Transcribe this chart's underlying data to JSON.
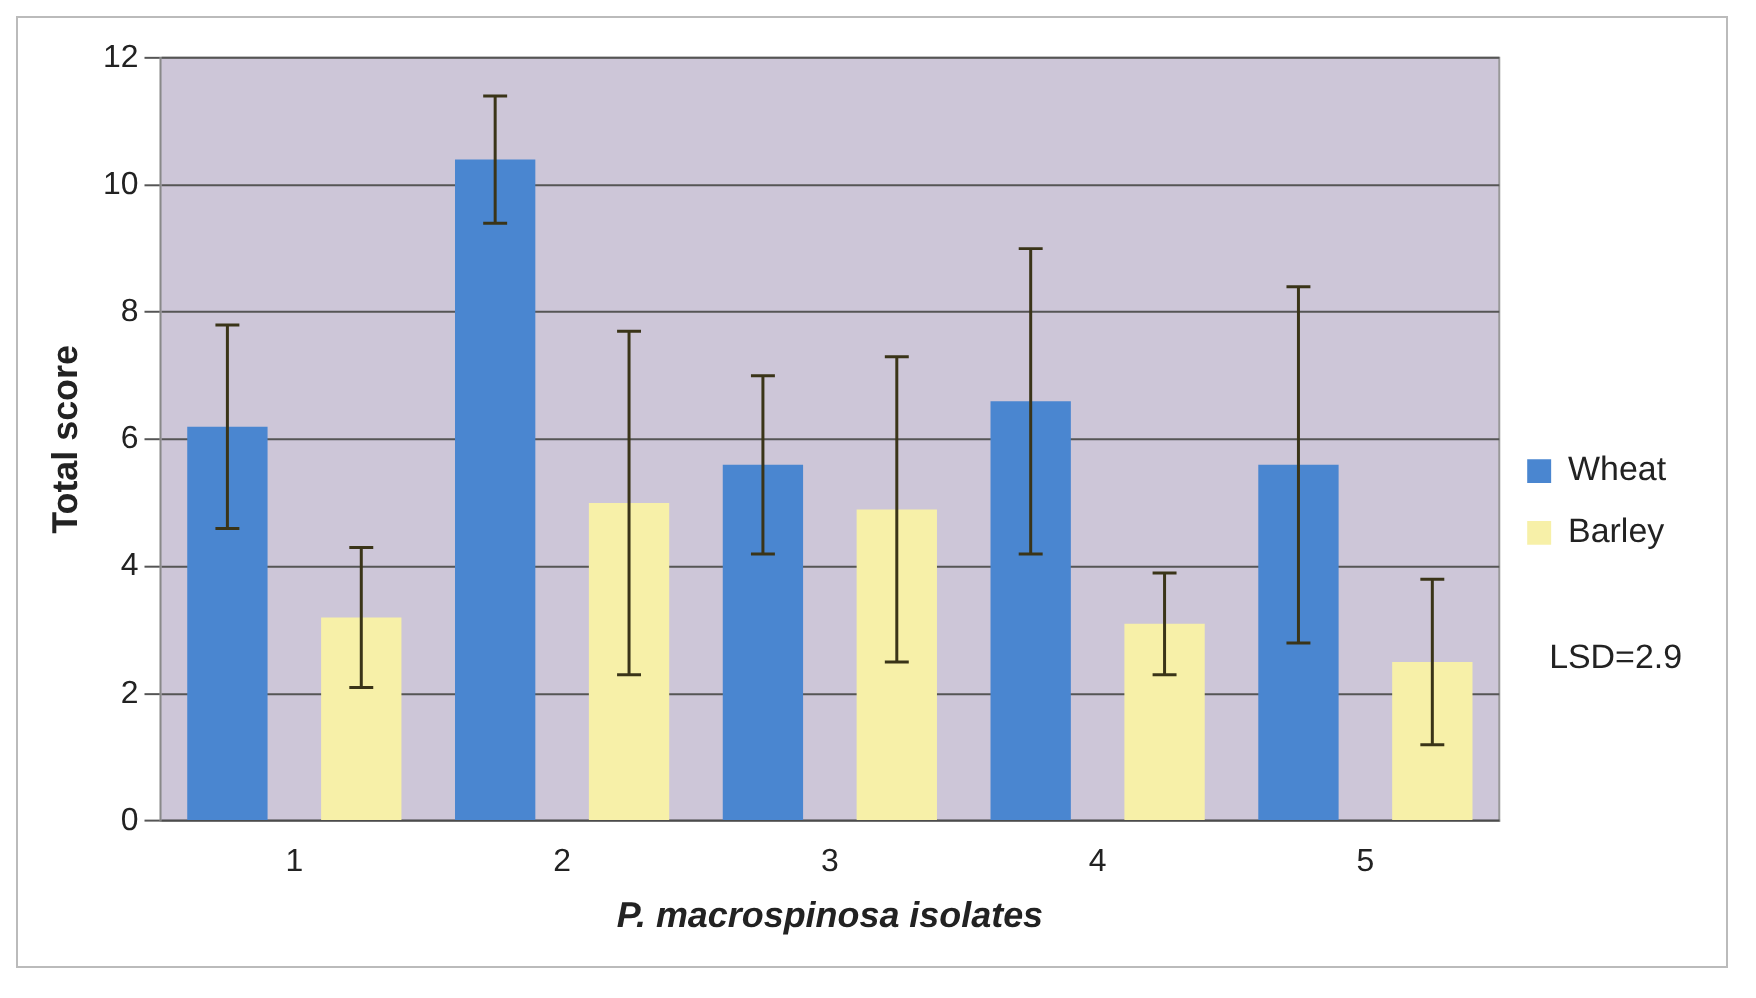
{
  "chart_data": {
    "type": "bar",
    "xlabel": "P. macrospinosa isolates",
    "ylabel": "Total score",
    "categories": [
      "1",
      "2",
      "3",
      "4",
      "5"
    ],
    "series": [
      {
        "name": "Wheat",
        "color": "#4a86d0",
        "values": [
          6.2,
          10.4,
          5.6,
          6.6,
          5.6
        ],
        "errors": [
          [
            4.6,
            7.8
          ],
          [
            9.4,
            11.4
          ],
          [
            4.2,
            7.0
          ],
          [
            4.2,
            9.0
          ],
          [
            2.8,
            8.4
          ]
        ]
      },
      {
        "name": "Barley",
        "color": "#f7f0a8",
        "values": [
          3.2,
          5.0,
          4.9,
          3.1,
          2.5
        ],
        "errors": [
          [
            2.1,
            4.3
          ],
          [
            2.3,
            7.7
          ],
          [
            2.5,
            7.3
          ],
          [
            2.3,
            3.9
          ],
          [
            1.2,
            3.8
          ]
        ]
      }
    ],
    "ylim": [
      0,
      12
    ],
    "yticks": [
      0,
      2,
      4,
      6,
      8,
      10,
      12
    ],
    "grid": "y",
    "legend": "right",
    "annotations": [
      "LSD=2.9"
    ]
  }
}
